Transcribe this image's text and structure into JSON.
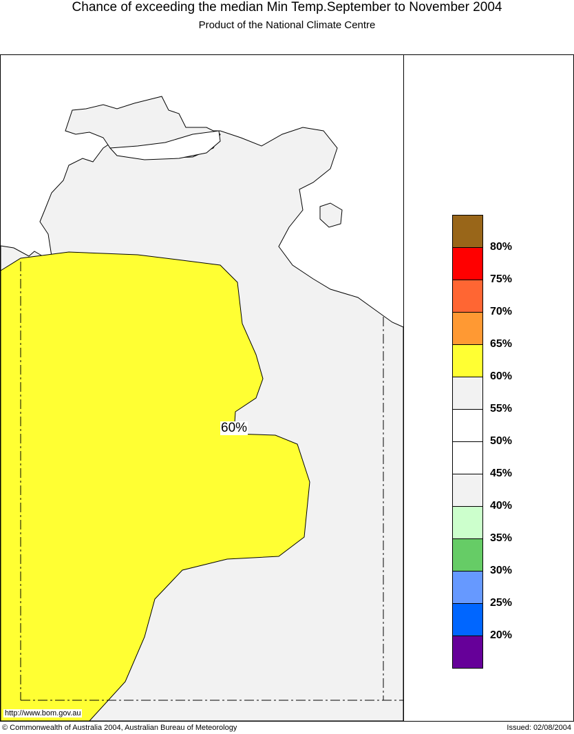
{
  "title": "Chance of exceeding the median Min Temp.September to November 2004",
  "subtitle": "Product of the National Climate Centre",
  "map": {
    "contour_label": "60%",
    "url": "http://www.bom.gov.au",
    "land_color": "#f2f2f2",
    "region_color": "#ffff33"
  },
  "legend": {
    "colors": [
      "#996619",
      "#ff0000",
      "#ff6633",
      "#ff9933",
      "#ffff33",
      "#f2f2f2",
      "#ffffff",
      "#ffffff",
      "#f2f2f2",
      "#ccffcc",
      "#66cc66",
      "#6699ff",
      "#0066ff",
      "#660099"
    ],
    "labels": [
      "80%",
      "75%",
      "70%",
      "65%",
      "60%",
      "55%",
      "50%",
      "45%",
      "40%",
      "35%",
      "30%",
      "25%",
      "20%"
    ]
  },
  "footer": {
    "copyright": "© Commonwealth of Australia 2004, Australian Bureau of Meteorology",
    "issued": "Issued: 02/08/2004"
  }
}
